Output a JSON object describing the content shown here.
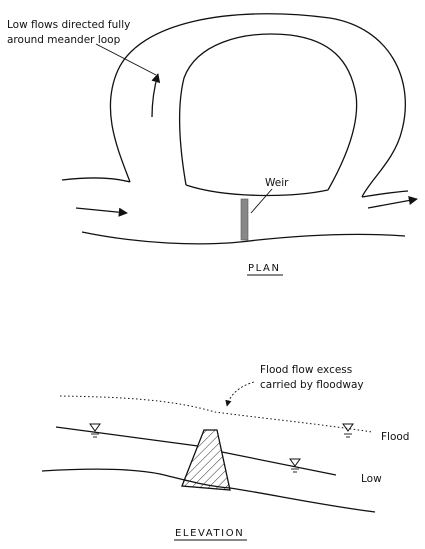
{
  "plan": {
    "annotation_line1": "Low flows directed fully",
    "annotation_line2": "around meander loop",
    "weir_label": "Weir",
    "caption": "PLAN"
  },
  "elevation": {
    "annotation_line1": "Flood flow excess",
    "annotation_line2": "carried by floodway",
    "flood_label": "Flood",
    "low_label": "Low",
    "caption": "ELEVATION"
  },
  "colors": {
    "line": "#111111",
    "weir_fill": "#888888"
  }
}
